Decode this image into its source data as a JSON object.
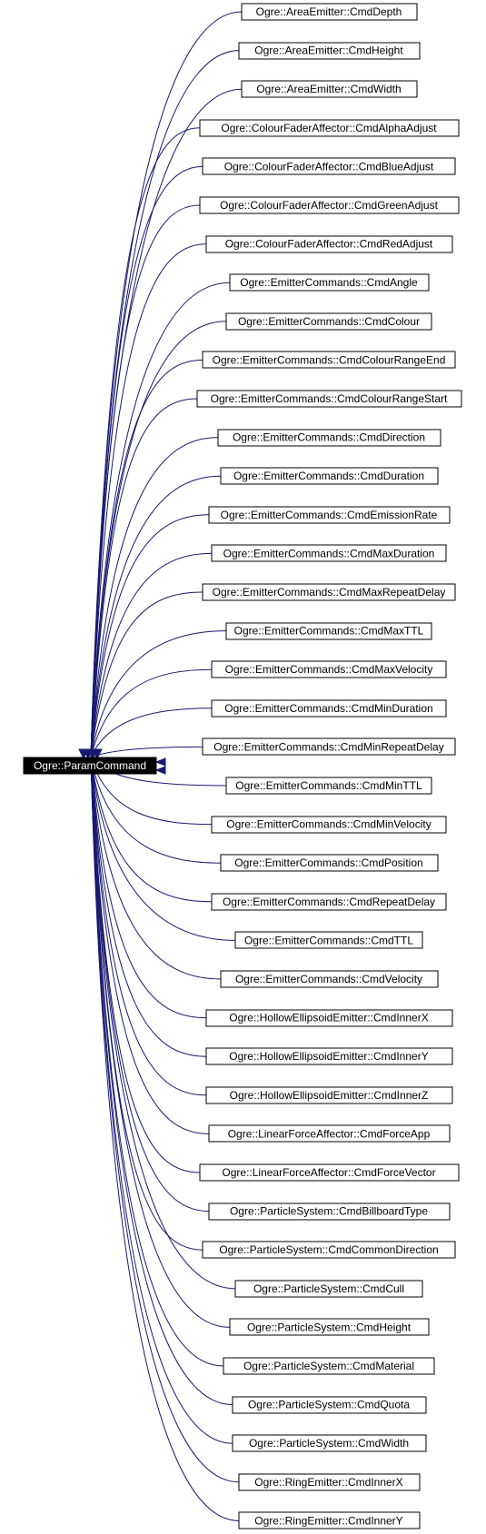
{
  "diagram": {
    "type": "inheritance-graph",
    "base_class": "Ogre::ParamCommand",
    "edge_color": "#191970",
    "base_fill": "#000000",
    "base_text_color": "#ffffff",
    "derived_classes": [
      "Ogre::AreaEmitter::CmdDepth",
      "Ogre::AreaEmitter::CmdHeight",
      "Ogre::AreaEmitter::CmdWidth",
      "Ogre::ColourFaderAffector::CmdAlphaAdjust",
      "Ogre::ColourFaderAffector::CmdBlueAdjust",
      "Ogre::ColourFaderAffector::CmdGreenAdjust",
      "Ogre::ColourFaderAffector::CmdRedAdjust",
      "Ogre::EmitterCommands::CmdAngle",
      "Ogre::EmitterCommands::CmdColour",
      "Ogre::EmitterCommands::CmdColourRangeEnd",
      "Ogre::EmitterCommands::CmdColourRangeStart",
      "Ogre::EmitterCommands::CmdDirection",
      "Ogre::EmitterCommands::CmdDuration",
      "Ogre::EmitterCommands::CmdEmissionRate",
      "Ogre::EmitterCommands::CmdMaxDuration",
      "Ogre::EmitterCommands::CmdMaxRepeatDelay",
      "Ogre::EmitterCommands::CmdMaxTTL",
      "Ogre::EmitterCommands::CmdMaxVelocity",
      "Ogre::EmitterCommands::CmdMinDuration",
      "Ogre::EmitterCommands::CmdMinRepeatDelay",
      "Ogre::EmitterCommands::CmdMinTTL",
      "Ogre::EmitterCommands::CmdMinVelocity",
      "Ogre::EmitterCommands::CmdPosition",
      "Ogre::EmitterCommands::CmdRepeatDelay",
      "Ogre::EmitterCommands::CmdTTL",
      "Ogre::EmitterCommands::CmdVelocity",
      "Ogre::HollowEllipsoidEmitter::CmdInnerX",
      "Ogre::HollowEllipsoidEmitter::CmdInnerY",
      "Ogre::HollowEllipsoidEmitter::CmdInnerZ",
      "Ogre::LinearForceAffector::CmdForceApp",
      "Ogre::LinearForceAffector::CmdForceVector",
      "Ogre::ParticleSystem::CmdBillboardType",
      "Ogre::ParticleSystem::CmdCommonDirection",
      "Ogre::ParticleSystem::CmdCull",
      "Ogre::ParticleSystem::CmdHeight",
      "Ogre::ParticleSystem::CmdMaterial",
      "Ogre::ParticleSystem::CmdQuota",
      "Ogre::ParticleSystem::CmdWidth",
      "Ogre::RingEmitter::CmdInnerX",
      "Ogre::RingEmitter::CmdInnerY"
    ]
  }
}
